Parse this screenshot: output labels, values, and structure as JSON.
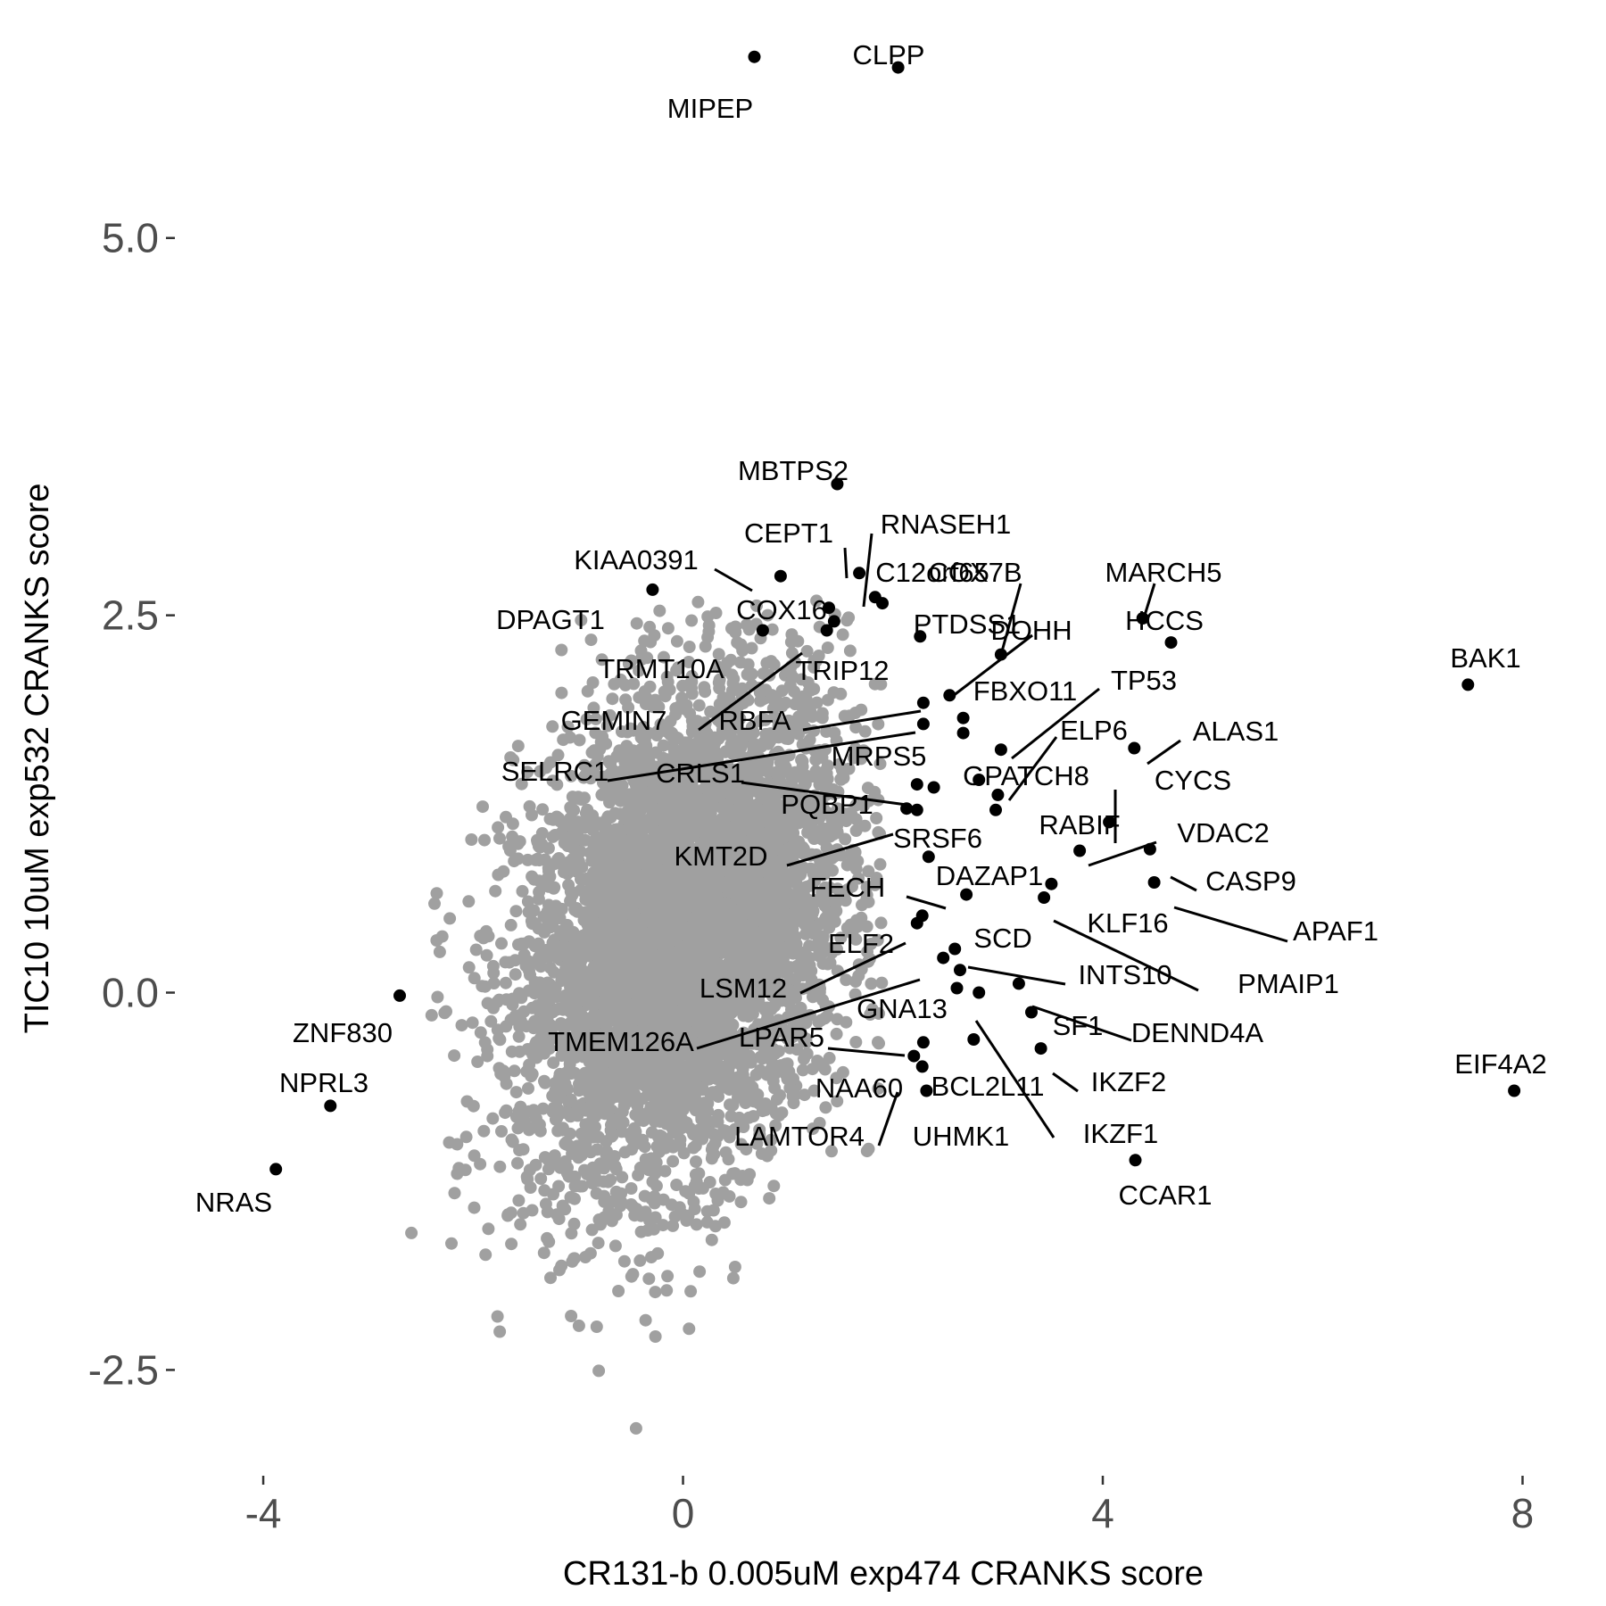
{
  "chart_data": {
    "type": "scatter",
    "title": "",
    "xlabel": "CR131-b 0.005uM exp474 CRANKS score",
    "ylabel": "TIC10 10uM exp532 CRANKS score",
    "xlim": [
      -4.4,
      8.2
    ],
    "ylim": [
      -3.0,
      6.5
    ],
    "x_ticks": [
      -4,
      0,
      4,
      8
    ],
    "x_tick_labels": [
      "-4",
      "0",
      "4",
      "8"
    ],
    "y_ticks": [
      -2.5,
      0.0,
      2.5,
      5.0
    ],
    "y_tick_labels": [
      "-2.5",
      "0.0",
      "2.5",
      "5.0"
    ],
    "grid": false,
    "colors": {
      "background_points": "#a0a0a0",
      "highlight_points": "#000000",
      "text": "#000000",
      "ticks": "#4d4d4d"
    },
    "highlighted_genes": [
      {
        "name": "MIPEP",
        "x": 0.68,
        "y": 6.2
      },
      {
        "name": "CLPP",
        "x": 2.05,
        "y": 6.13
      },
      {
        "name": "MBTPS2",
        "x": 1.47,
        "y": 3.37
      },
      {
        "name": "CEPT1",
        "x": 1.68,
        "y": 2.78
      },
      {
        "name": "RNASEH1",
        "x": 1.83,
        "y": 2.62
      },
      {
        "name": "C12orf65",
        "x": 1.9,
        "y": 2.58
      },
      {
        "name": "KIAA0391",
        "x": 0.93,
        "y": 2.76
      },
      {
        "name": "DPAGT1",
        "x": -0.29,
        "y": 2.67
      },
      {
        "name": "COX16",
        "x": 1.39,
        "y": 2.55
      },
      {
        "name": "COX7B",
        "x": 3.03,
        "y": 2.24
      },
      {
        "name": "MARCH5",
        "x": 4.38,
        "y": 2.48
      },
      {
        "name": "HCCS",
        "x": 4.65,
        "y": 2.32
      },
      {
        "name": "BAK1",
        "x": 7.48,
        "y": 2.04
      },
      {
        "name": "TRMT10A",
        "x": 0.76,
        "y": 2.4
      },
      {
        "name": "TRIP12",
        "x": 1.37,
        "y": 2.4
      },
      {
        "name": "PTDSS1",
        "x": 2.26,
        "y": 2.36
      },
      {
        "name": "DOHH",
        "x": 2.54,
        "y": 1.97
      },
      {
        "name": "FBXO11",
        "x": 2.67,
        "y": 1.82
      },
      {
        "name": "GEMIN7",
        "x": 1.44,
        "y": 2.46
      },
      {
        "name": "RBFA",
        "x": 2.29,
        "y": 1.92
      },
      {
        "name": "SELRC1",
        "x": 2.29,
        "y": 1.78
      },
      {
        "name": "TP53",
        "x": 3.03,
        "y": 1.61
      },
      {
        "name": "ELP6",
        "x": 3.0,
        "y": 1.31
      },
      {
        "name": "ALAS1",
        "x": 4.3,
        "y": 1.62
      },
      {
        "name": "MRPS5",
        "x": 2.67,
        "y": 1.72
      },
      {
        "name": "CRLS1",
        "x": 2.23,
        "y": 1.38
      },
      {
        "name": "GPATCH8",
        "x": 2.82,
        "y": 1.41
      },
      {
        "name": "CYCS",
        "x": 4.06,
        "y": 1.13
      },
      {
        "name": "PQBP1",
        "x": 2.39,
        "y": 1.36
      },
      {
        "name": "RABIF",
        "x": 2.98,
        "y": 1.21
      },
      {
        "name": "VDAC2",
        "x": 3.78,
        "y": 0.94
      },
      {
        "name": "KMT2D",
        "x": 2.23,
        "y": 1.21
      },
      {
        "name": "SRSF6",
        "x": 2.13,
        "y": 1.22
      },
      {
        "name": "CASP9",
        "x": 4.45,
        "y": 0.95
      },
      {
        "name": "DAZAP1",
        "x": 2.34,
        "y": 0.9
      },
      {
        "name": "APAF1",
        "x": 4.49,
        "y": 0.73
      },
      {
        "name": "FECH",
        "x": 2.7,
        "y": 0.65
      },
      {
        "name": "KLF16",
        "x": 3.51,
        "y": 0.72
      },
      {
        "name": "PMAIP1",
        "x": 3.44,
        "y": 0.63
      },
      {
        "name": "ELF2",
        "x": 2.23,
        "y": 0.46
      },
      {
        "name": "SCD",
        "x": 2.59,
        "y": 0.29
      },
      {
        "name": "INTS10",
        "x": 2.64,
        "y": 0.15
      },
      {
        "name": "LSM12",
        "x": 2.28,
        "y": 0.51
      },
      {
        "name": "TMEM126A",
        "x": 2.48,
        "y": 0.23
      },
      {
        "name": "GNA13",
        "x": 2.61,
        "y": 0.03
      },
      {
        "name": "DENND4A",
        "x": 3.2,
        "y": 0.06
      },
      {
        "name": "SF1",
        "x": 3.32,
        "y": -0.13
      },
      {
        "name": "LPAR5",
        "x": 2.29,
        "y": -0.33
      },
      {
        "name": "IKZF2",
        "x": 3.41,
        "y": -0.37
      },
      {
        "name": "NAA60",
        "x": 2.2,
        "y": -0.42
      },
      {
        "name": "BCL2L11",
        "x": 2.77,
        "y": -0.31
      },
      {
        "name": "UHMK1",
        "x": 2.32,
        "y": -0.65
      },
      {
        "name": "IKZF1",
        "x": 2.82,
        "y": 0.0
      },
      {
        "name": "LAMTOR4",
        "x": 2.28,
        "y": -0.49
      },
      {
        "name": "CCAR1",
        "x": 4.31,
        "y": -1.11
      },
      {
        "name": "EIF4A2",
        "x": 7.92,
        "y": -0.65
      },
      {
        "name": "ZNF830",
        "x": -2.7,
        "y": -0.02
      },
      {
        "name": "NPRL3",
        "x": -3.36,
        "y": -0.75
      },
      {
        "name": "NRAS",
        "x": -3.88,
        "y": -1.17
      }
    ],
    "background_cloud": {
      "description": "several thousand grey gene points",
      "center": [
        0.0,
        0.4
      ],
      "sd": [
        0.78,
        0.82
      ],
      "correlation": 0.3
    }
  }
}
